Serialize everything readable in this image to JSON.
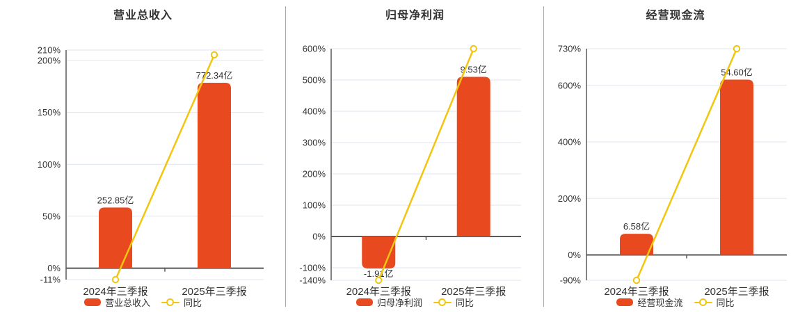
{
  "colors": {
    "bar": "#e8491f",
    "line": "#f2c50e",
    "grid": "#e0e6ef",
    "axis": "#58595b",
    "zero_line": "#58595b",
    "text": "#333333",
    "title": "#333333",
    "divider": "#aaaaaa",
    "marker_fill": "#ffffff"
  },
  "chart_data": [
    {
      "type": "combo_bar_line",
      "title": "营业总收入",
      "categories": [
        "2024年三季报",
        "2025年三季报"
      ],
      "unit": "亿",
      "bar_series": {
        "name": "营业总收入",
        "values": [
          252.85,
          772.34
        ],
        "labels": [
          "252.85亿",
          "772.34亿"
        ]
      },
      "line_series": {
        "name": "同比",
        "values_pct": [
          -11,
          205.4
        ]
      },
      "yticks": [
        210,
        200,
        150,
        100,
        50,
        0,
        -11
      ],
      "ytick_labels": [
        "210%",
        "200%",
        "150%",
        "100%",
        "50%",
        "0%",
        "-11%"
      ],
      "ylim": [
        -11,
        210
      ],
      "grid": true,
      "legend_position": "bottom"
    },
    {
      "type": "combo_bar_line",
      "title": "归母净利润",
      "categories": [
        "2024年三季报",
        "2025年三季报"
      ],
      "unit": "亿",
      "bar_series": {
        "name": "归母净利润",
        "values": [
          -1.91,
          9.53
        ],
        "labels": [
          "-1.91亿",
          "9.53亿"
        ]
      },
      "line_series": {
        "name": "同比",
        "values_pct": [
          -140,
          600
        ]
      },
      "yticks": [
        600,
        500,
        400,
        300,
        200,
        100,
        0,
        -100,
        -140
      ],
      "ytick_labels": [
        "600%",
        "500%",
        "400%",
        "300%",
        "200%",
        "100%",
        "0%",
        "-100%",
        "-140%"
      ],
      "ylim": [
        -140,
        600
      ],
      "grid": true,
      "legend_position": "bottom"
    },
    {
      "type": "combo_bar_line",
      "title": "经营现金流",
      "categories": [
        "2024年三季报",
        "2025年三季报"
      ],
      "unit": "亿",
      "bar_series": {
        "name": "经营现金流",
        "values": [
          6.58,
          54.6
        ],
        "labels": [
          "6.58亿",
          "54.60亿"
        ]
      },
      "line_series": {
        "name": "同比",
        "values_pct": [
          -90,
          730
        ]
      },
      "yticks": [
        730,
        600,
        400,
        200,
        0,
        -90
      ],
      "ytick_labels": [
        "730%",
        "600%",
        "400%",
        "200%",
        "0%",
        "-90%"
      ],
      "ylim": [
        -90,
        730
      ],
      "grid": true,
      "legend_position": "bottom"
    }
  ]
}
